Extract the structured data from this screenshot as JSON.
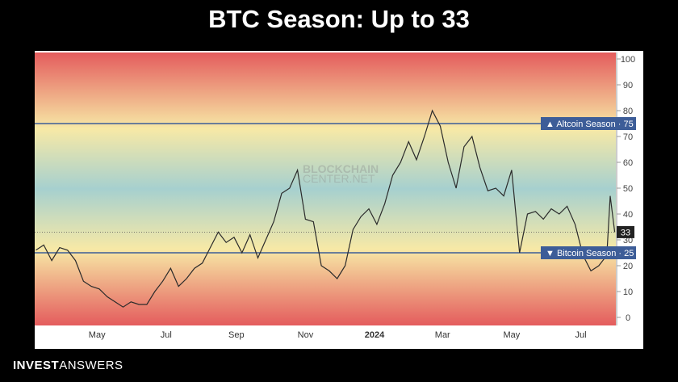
{
  "page": {
    "title": "BTC Season: Up to 33"
  },
  "watermark": {
    "line1": "BLOCKCHAIN",
    "line2": "CENTER.NET"
  },
  "brand": {
    "bold": "INVEST",
    "light": "ANSWERS"
  },
  "chart_data": {
    "type": "line",
    "title": "BTC Season: Up to 33",
    "xlabel": "",
    "ylabel": "",
    "ylim": [
      0,
      100
    ],
    "yticks": [
      0,
      10,
      20,
      30,
      40,
      50,
      60,
      70,
      80,
      90,
      100
    ],
    "xticks": [
      {
        "label": "May",
        "date": "2023-05-01",
        "bold": false
      },
      {
        "label": "Jul",
        "date": "2023-07-01",
        "bold": false
      },
      {
        "label": "Sep",
        "date": "2023-09-01",
        "bold": false
      },
      {
        "label": "Nov",
        "date": "2023-11-01",
        "bold": false
      },
      {
        "label": "2024",
        "date": "2024-01-01",
        "bold": true
      },
      {
        "label": "Mar",
        "date": "2024-03-01",
        "bold": false
      },
      {
        "label": "May",
        "date": "2024-05-01",
        "bold": false
      },
      {
        "label": "Jul",
        "date": "2024-07-01",
        "bold": false
      }
    ],
    "xrange": [
      "2023-03-07",
      "2024-08-01"
    ],
    "current_value": 33,
    "thresholds": [
      {
        "label": "▲ Altcoin Season",
        "value": 75,
        "color": "#3d5d98"
      },
      {
        "label": "▼ Bitcoin Season",
        "value": 25,
        "color": "#3d5d98"
      }
    ],
    "background_gradient": [
      "#e45c5d",
      "#f7e9a6",
      "#a6d0cf",
      "#f7e9a6",
      "#e45c5d"
    ],
    "series": [
      {
        "color": "#2b2b2b",
        "points": [
          [
            "2023-03-08",
            26
          ],
          [
            "2023-03-15",
            28
          ],
          [
            "2023-03-22",
            22
          ],
          [
            "2023-03-29",
            27
          ],
          [
            "2023-04-05",
            26
          ],
          [
            "2023-04-12",
            22
          ],
          [
            "2023-04-19",
            14
          ],
          [
            "2023-04-26",
            12
          ],
          [
            "2023-05-03",
            11
          ],
          [
            "2023-05-10",
            8
          ],
          [
            "2023-05-17",
            6
          ],
          [
            "2023-05-24",
            4
          ],
          [
            "2023-05-31",
            6
          ],
          [
            "2023-06-07",
            5
          ],
          [
            "2023-06-14",
            5
          ],
          [
            "2023-06-21",
            10
          ],
          [
            "2023-06-28",
            14
          ],
          [
            "2023-07-05",
            19
          ],
          [
            "2023-07-12",
            12
          ],
          [
            "2023-07-19",
            15
          ],
          [
            "2023-07-26",
            19
          ],
          [
            "2023-08-02",
            21
          ],
          [
            "2023-08-09",
            27
          ],
          [
            "2023-08-16",
            33
          ],
          [
            "2023-08-23",
            29
          ],
          [
            "2023-08-30",
            31
          ],
          [
            "2023-09-06",
            25
          ],
          [
            "2023-09-13",
            32
          ],
          [
            "2023-09-20",
            23
          ],
          [
            "2023-09-27",
            30
          ],
          [
            "2023-10-04",
            37
          ],
          [
            "2023-10-11",
            48
          ],
          [
            "2023-10-18",
            50
          ],
          [
            "2023-10-25",
            57
          ],
          [
            "2023-11-01",
            38
          ],
          [
            "2023-11-08",
            37
          ],
          [
            "2023-11-15",
            20
          ],
          [
            "2023-11-22",
            18
          ],
          [
            "2023-11-29",
            15
          ],
          [
            "2023-12-06",
            20
          ],
          [
            "2023-12-13",
            34
          ],
          [
            "2023-12-20",
            39
          ],
          [
            "2023-12-27",
            42
          ],
          [
            "2024-01-03",
            36
          ],
          [
            "2024-01-10",
            44
          ],
          [
            "2024-01-17",
            55
          ],
          [
            "2024-01-24",
            60
          ],
          [
            "2024-01-31",
            68
          ],
          [
            "2024-02-07",
            61
          ],
          [
            "2024-02-14",
            70
          ],
          [
            "2024-02-21",
            80
          ],
          [
            "2024-02-28",
            74
          ],
          [
            "2024-03-06",
            60
          ],
          [
            "2024-03-13",
            50
          ],
          [
            "2024-03-20",
            66
          ],
          [
            "2024-03-27",
            70
          ],
          [
            "2024-04-03",
            58
          ],
          [
            "2024-04-10",
            49
          ],
          [
            "2024-04-17",
            50
          ],
          [
            "2024-04-24",
            47
          ],
          [
            "2024-05-01",
            57
          ],
          [
            "2024-05-08",
            25
          ],
          [
            "2024-05-15",
            40
          ],
          [
            "2024-05-22",
            41
          ],
          [
            "2024-05-29",
            38
          ],
          [
            "2024-06-05",
            42
          ],
          [
            "2024-06-12",
            40
          ],
          [
            "2024-06-19",
            43
          ],
          [
            "2024-06-26",
            36
          ],
          [
            "2024-07-03",
            24
          ],
          [
            "2024-07-10",
            18
          ],
          [
            "2024-07-17",
            20
          ],
          [
            "2024-07-24",
            24
          ],
          [
            "2024-07-27",
            47
          ],
          [
            "2024-07-31",
            33
          ]
        ]
      }
    ]
  }
}
